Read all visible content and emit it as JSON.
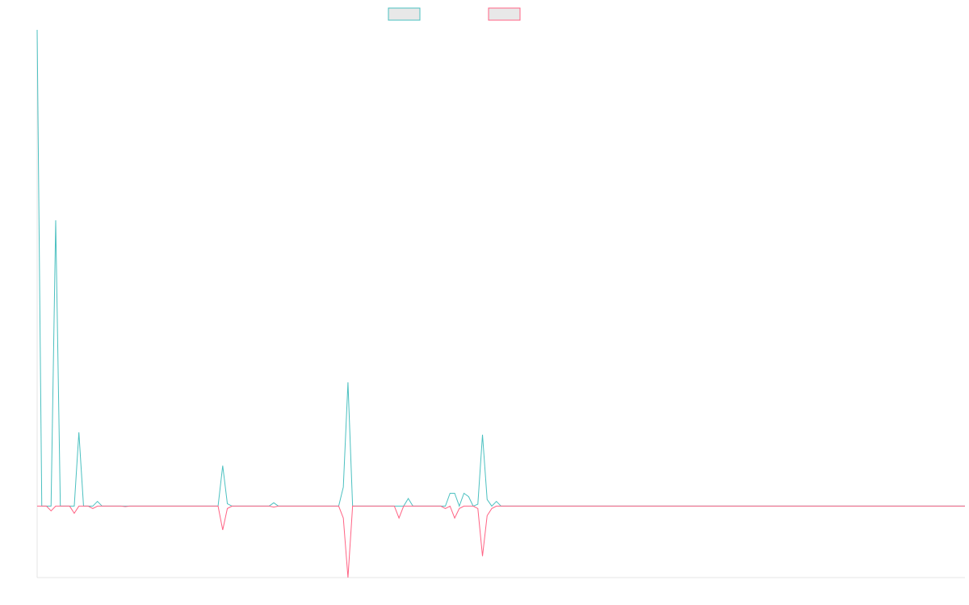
{
  "chart_data": {
    "type": "line",
    "title": "",
    "xlabel": "",
    "ylabel": "",
    "legend": {
      "placement": "top-center",
      "show_labels": false
    },
    "grid": false,
    "x_range": [
      0,
      200
    ],
    "ylim": [
      -15,
      100
    ],
    "series": [
      {
        "color": "#4bc0c0",
        "values": [
          100,
          0,
          0,
          0,
          60,
          0,
          0,
          0,
          0,
          15.5,
          0,
          0,
          0,
          1,
          0,
          0,
          0,
          0,
          0,
          0,
          0,
          0,
          0,
          0,
          0,
          0,
          0,
          0,
          0,
          0,
          0,
          0,
          0,
          0,
          0,
          0,
          0,
          0,
          0,
          0,
          8.5,
          0.5,
          0,
          0,
          0,
          0,
          0,
          0,
          0,
          0,
          0,
          0.7,
          0,
          0,
          0,
          0,
          0,
          0,
          0,
          0,
          0,
          0,
          0,
          0,
          0,
          0,
          4,
          26,
          0,
          0,
          0,
          0,
          0,
          0,
          0,
          0,
          0,
          0,
          0,
          0,
          1.6,
          0,
          0,
          0,
          0,
          0,
          0,
          0,
          0,
          2.7,
          2.7,
          0,
          2.7,
          2,
          0,
          0.4,
          15,
          1.4,
          0,
          1,
          0,
          0,
          0,
          0,
          0,
          0,
          0,
          0,
          0,
          0,
          0,
          0,
          0,
          0,
          0,
          0,
          0,
          0,
          0,
          0,
          0,
          0,
          0,
          0,
          0,
          0,
          0,
          0,
          0,
          0,
          0,
          0,
          0,
          0,
          0,
          0,
          0,
          0,
          0,
          0,
          0,
          0,
          0,
          0,
          0,
          0,
          0,
          0,
          0,
          0,
          0,
          0,
          0,
          0,
          0,
          0,
          0,
          0,
          0,
          0,
          0,
          0,
          0,
          0,
          0,
          0,
          0,
          0,
          0,
          0,
          0,
          0,
          0,
          0,
          0,
          0,
          0,
          0,
          0,
          0,
          0,
          0,
          0,
          0,
          0,
          0,
          0,
          0,
          0,
          0,
          0,
          0,
          0,
          0,
          0,
          0,
          0,
          0,
          0,
          0,
          0
        ]
      },
      {
        "color": "#ff6384",
        "values": [
          0,
          0,
          0,
          -1,
          0,
          0,
          0,
          0,
          -1.5,
          0,
          0,
          0,
          -0.5,
          0,
          0,
          0,
          0,
          0,
          0,
          -0.1,
          0,
          0,
          0,
          0,
          0,
          0,
          0,
          0,
          0,
          0,
          0,
          0,
          0,
          0,
          0,
          0,
          0,
          0,
          0,
          0,
          -5,
          -0.5,
          0,
          0,
          0,
          0,
          0,
          0,
          0,
          0,
          0,
          -0.2,
          0,
          0,
          0,
          0,
          0,
          0,
          0,
          0,
          0,
          0,
          0,
          0,
          0,
          0,
          -2.5,
          -15,
          0,
          0,
          0,
          0,
          0,
          0,
          0,
          0,
          0,
          0,
          -2.5,
          0,
          0,
          0,
          0,
          0,
          0,
          0,
          0,
          0,
          -0.5,
          0,
          -2.5,
          -0.5,
          0,
          0,
          0,
          -0.5,
          -10.5,
          -2,
          -0.5,
          0,
          0,
          0,
          0,
          0,
          0,
          0,
          0,
          0,
          0,
          0,
          0,
          0,
          0,
          0,
          0,
          0,
          0,
          0,
          0,
          0,
          0,
          0,
          0,
          0,
          0,
          0,
          0,
          0,
          0,
          0,
          0,
          0,
          0,
          0,
          0,
          0,
          0,
          0,
          0,
          0,
          0,
          0,
          0,
          0,
          0,
          0,
          0,
          0,
          0,
          0,
          0,
          0,
          0,
          0,
          0,
          0,
          0,
          0,
          0,
          0,
          0,
          0,
          0,
          0,
          0,
          0,
          0,
          0,
          0,
          0,
          0,
          0,
          0,
          0,
          0,
          0,
          0,
          0,
          0,
          0,
          0,
          0,
          0,
          0,
          0,
          0,
          0,
          0,
          0,
          0,
          0,
          0,
          0,
          0,
          0,
          0,
          0,
          0,
          0,
          0,
          0
        ]
      }
    ]
  }
}
